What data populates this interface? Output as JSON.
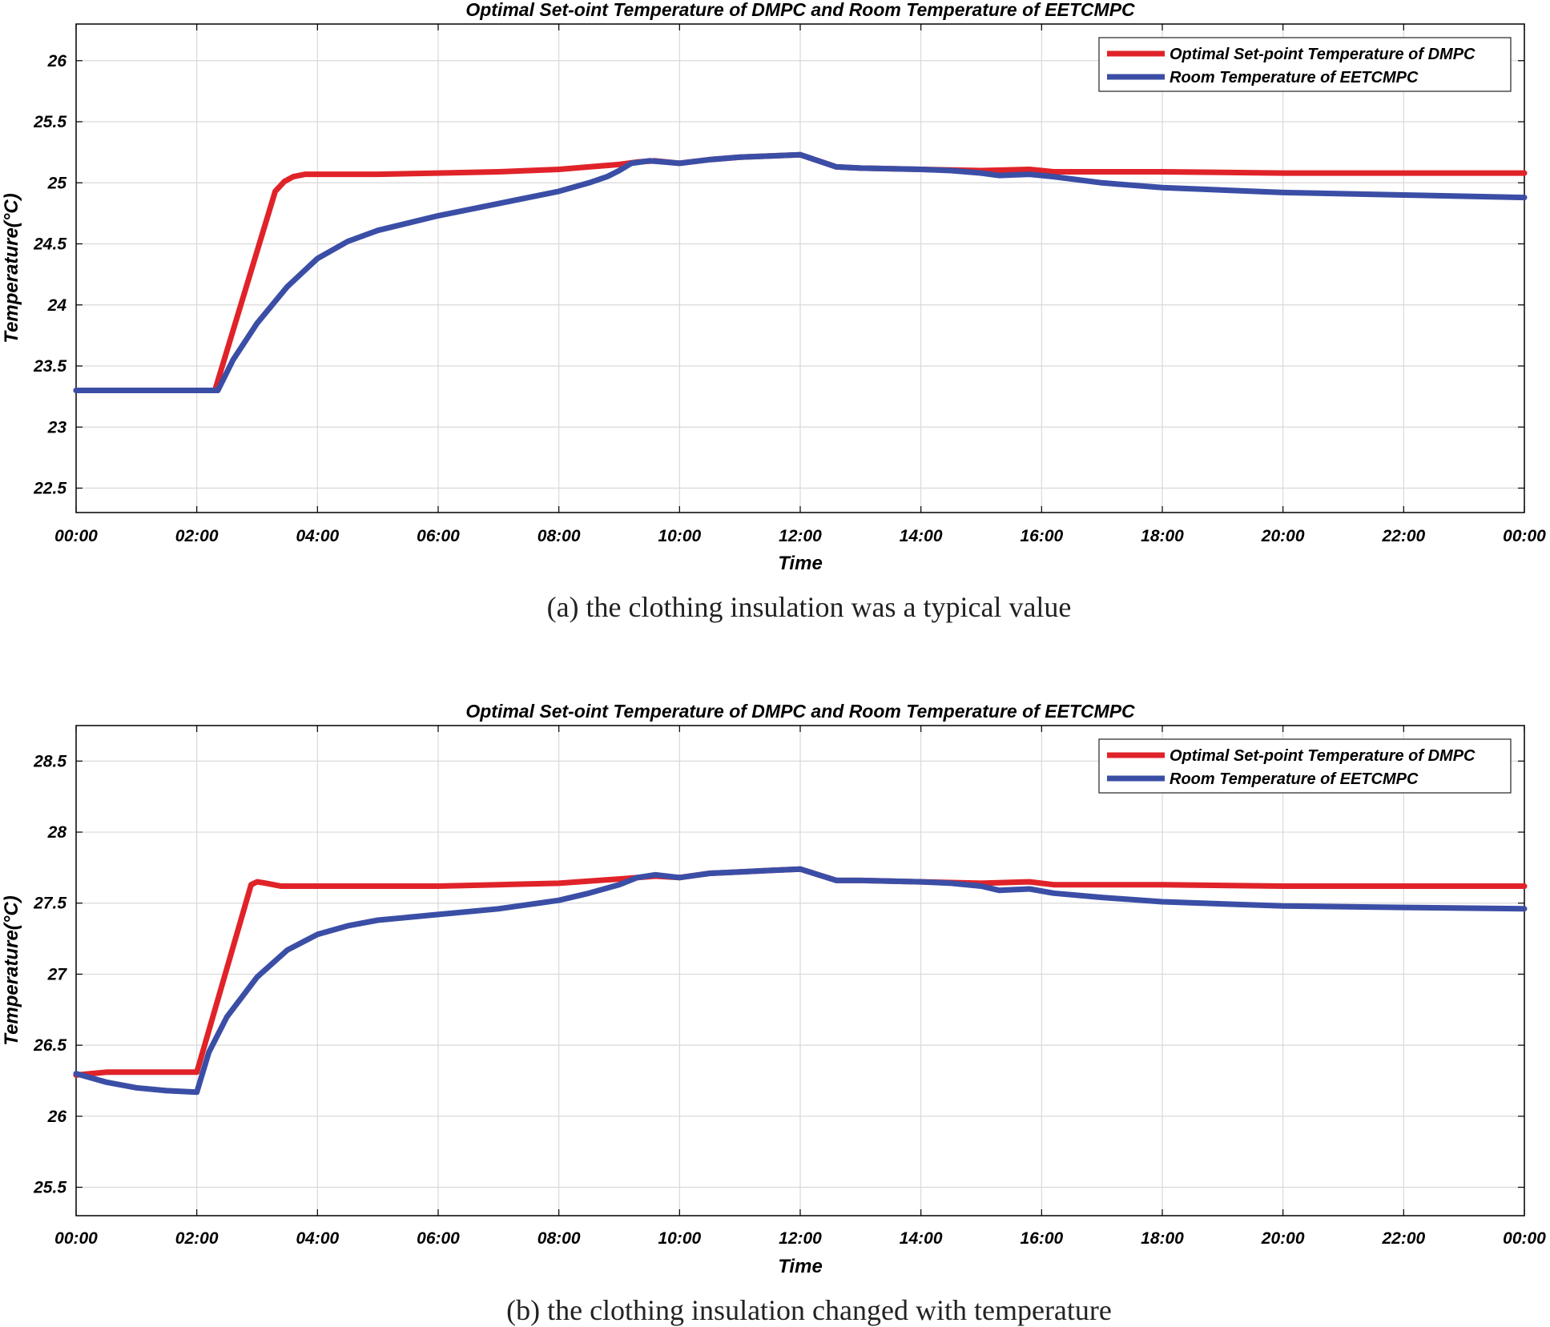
{
  "colors": {
    "setpoint": "#e02329",
    "room": "#3b4ea6"
  },
  "chart_data": [
    {
      "type": "line",
      "title": "Optimal Set-oint Temperature of DMPC and Room Temperature of EETCMPC",
      "xlabel": "Time",
      "ylabel": "Temperature(°C)",
      "xlim": [
        0,
        24
      ],
      "ylim": [
        22.3,
        26.3
      ],
      "xticks": [
        0,
        2,
        4,
        6,
        8,
        10,
        12,
        14,
        16,
        18,
        20,
        22,
        24
      ],
      "xtick_labels": [
        "00:00",
        "02:00",
        "04:00",
        "06:00",
        "08:00",
        "10:00",
        "12:00",
        "14:00",
        "16:00",
        "18:00",
        "20:00",
        "22:00",
        "00:00"
      ],
      "yticks": [
        22.5,
        23,
        23.5,
        24,
        24.5,
        25,
        25.5,
        26
      ],
      "ytick_labels": [
        "22.5",
        "23",
        "23.5",
        "24",
        "24.5",
        "25",
        "25.5",
        "26"
      ],
      "grid": true,
      "legend_position": "top-right",
      "caption": "(a) the clothing insulation was a typical value",
      "series": [
        {
          "name": "Optimal Set-point Temperature of DMPC",
          "color_key": "setpoint",
          "x": [
            0,
            2.3,
            3.3,
            3.45,
            3.6,
            3.8,
            4,
            5,
            6,
            7,
            8,
            8.5,
            9,
            9.3,
            9.6,
            10,
            10.5,
            11,
            11.5,
            12,
            12.3,
            12.6,
            13,
            14,
            15,
            15.8,
            16.2,
            17,
            18,
            20,
            22,
            24
          ],
          "y": [
            23.3,
            23.3,
            24.93,
            25.01,
            25.05,
            25.07,
            25.07,
            25.07,
            25.08,
            25.09,
            25.11,
            25.13,
            25.15,
            25.17,
            25.18,
            25.16,
            25.19,
            25.21,
            25.22,
            25.23,
            25.18,
            25.13,
            25.12,
            25.11,
            25.1,
            25.11,
            25.09,
            25.09,
            25.09,
            25.08,
            25.08,
            25.08
          ]
        },
        {
          "name": "Room Temperature of EETCMPC",
          "color_key": "room",
          "x": [
            0,
            2.35,
            2.6,
            3,
            3.5,
            4,
            4.5,
            5,
            6,
            7,
            8,
            8.5,
            8.8,
            9,
            9.2,
            9.5,
            10,
            10.5,
            11,
            11.5,
            12,
            12.3,
            12.6,
            13,
            14,
            14.5,
            15,
            15.3,
            15.8,
            16.2,
            17,
            18,
            20,
            22,
            24
          ],
          "y": [
            23.3,
            23.3,
            23.55,
            23.85,
            24.15,
            24.38,
            24.52,
            24.61,
            24.73,
            24.83,
            24.93,
            25.0,
            25.05,
            25.1,
            25.16,
            25.18,
            25.16,
            25.19,
            25.21,
            25.22,
            25.23,
            25.18,
            25.13,
            25.12,
            25.11,
            25.1,
            25.08,
            25.06,
            25.07,
            25.05,
            25.0,
            24.96,
            24.92,
            24.9,
            24.88
          ]
        }
      ]
    },
    {
      "type": "line",
      "title": "Optimal Set-oint Temperature of DMPC and Room Temperature of EETCMPC",
      "xlabel": "Time",
      "ylabel": "Temperature(°C)",
      "xlim": [
        0,
        24
      ],
      "ylim": [
        25.3,
        28.75
      ],
      "xticks": [
        0,
        2,
        4,
        6,
        8,
        10,
        12,
        14,
        16,
        18,
        20,
        22,
        24
      ],
      "xtick_labels": [
        "00:00",
        "02:00",
        "04:00",
        "06:00",
        "08:00",
        "10:00",
        "12:00",
        "14:00",
        "16:00",
        "18:00",
        "20:00",
        "22:00",
        "00:00"
      ],
      "yticks": [
        25.5,
        26,
        26.5,
        27,
        27.5,
        28,
        28.5
      ],
      "ytick_labels": [
        "25.5",
        "26",
        "26.5",
        "27",
        "27.5",
        "28",
        "28.5"
      ],
      "grid": true,
      "legend_position": "top-right",
      "caption": "(b) the clothing insulation changed with temperature",
      "series": [
        {
          "name": "Optimal Set-point Temperature of DMPC",
          "color_key": "setpoint",
          "x": [
            0,
            0.5,
            2.0,
            2.9,
            3.0,
            3.15,
            3.4,
            4,
            5,
            6,
            7,
            8,
            9,
            9.6,
            10,
            10.5,
            11,
            11.5,
            12,
            12.3,
            12.6,
            13,
            14,
            15,
            15.8,
            16.2,
            17,
            18,
            20,
            22,
            24
          ],
          "y": [
            26.29,
            26.31,
            26.31,
            27.63,
            27.65,
            27.64,
            27.62,
            27.62,
            27.62,
            27.62,
            27.63,
            27.64,
            27.67,
            27.69,
            27.68,
            27.71,
            27.72,
            27.73,
            27.74,
            27.7,
            27.66,
            27.66,
            27.65,
            27.64,
            27.65,
            27.63,
            27.63,
            27.63,
            27.62,
            27.62,
            27.62
          ]
        },
        {
          "name": "Room Temperature of EETCMPC",
          "color_key": "room",
          "x": [
            0,
            0.5,
            1,
            1.5,
            2.0,
            2.2,
            2.5,
            3,
            3.5,
            4,
            4.5,
            5,
            6,
            7,
            8,
            8.5,
            9,
            9.3,
            9.6,
            10,
            10.5,
            11,
            11.5,
            12,
            12.3,
            12.6,
            13,
            14,
            14.5,
            15,
            15.3,
            15.8,
            16.2,
            17,
            18,
            20,
            22,
            24
          ],
          "y": [
            26.3,
            26.24,
            26.2,
            26.18,
            26.17,
            26.45,
            26.7,
            26.98,
            27.17,
            27.28,
            27.34,
            27.38,
            27.42,
            27.46,
            27.52,
            27.57,
            27.63,
            27.68,
            27.7,
            27.68,
            27.71,
            27.72,
            27.73,
            27.74,
            27.7,
            27.66,
            27.66,
            27.65,
            27.64,
            27.62,
            27.59,
            27.6,
            27.57,
            27.54,
            27.51,
            27.48,
            27.47,
            27.46
          ]
        }
      ]
    }
  ]
}
